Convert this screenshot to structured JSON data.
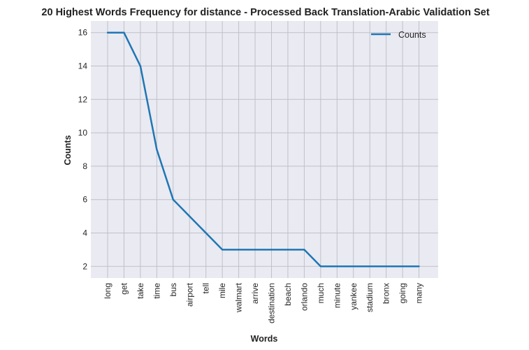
{
  "chart_data": {
    "type": "line",
    "title": "20 Highest Words Frequency for distance - Processed Back Translation-Arabic Validation Set",
    "xlabel": "Words",
    "ylabel": "Counts",
    "categories": [
      "long",
      "get",
      "take",
      "time",
      "bus",
      "airport",
      "tell",
      "mile",
      "walmart",
      "arrive",
      "destination",
      "beach",
      "orlando",
      "much",
      "minute",
      "yankee",
      "stadium",
      "bronx",
      "going",
      "many"
    ],
    "series": [
      {
        "name": "Counts",
        "values": [
          16,
          16,
          14,
          9,
          6,
          5,
          4,
          3,
          3,
          3,
          3,
          3,
          3,
          2,
          2,
          2,
          2,
          2,
          2,
          2
        ]
      }
    ],
    "yticks": [
      2,
      4,
      6,
      8,
      10,
      12,
      14,
      16
    ],
    "ylim": [
      1.3,
      16.7
    ],
    "grid": true,
    "legend": "top-right",
    "colors": {
      "line": "#1f77b4",
      "plot_bg": "#eaeaf2",
      "grid": "#c0c0c8"
    }
  }
}
